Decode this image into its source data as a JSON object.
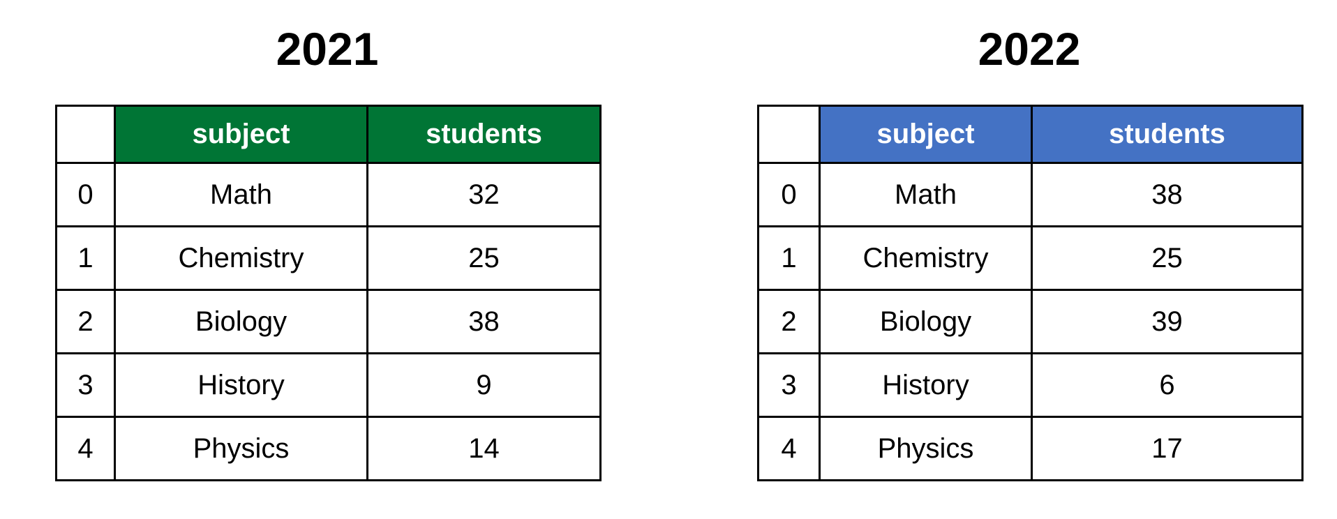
{
  "chart_data": [
    {
      "type": "table",
      "title": "2021",
      "header_color": "#007535",
      "columns": [
        "",
        "subject",
        "students"
      ],
      "rows": [
        {
          "index": "0",
          "subject": "Math",
          "students": 32
        },
        {
          "index": "1",
          "subject": "Chemistry",
          "students": 25
        },
        {
          "index": "2",
          "subject": "Biology",
          "students": 38
        },
        {
          "index": "3",
          "subject": "History",
          "students": 9
        },
        {
          "index": "4",
          "subject": "Physics",
          "students": 14
        }
      ]
    },
    {
      "type": "table",
      "title": "2022",
      "header_color": "#4472C4",
      "columns": [
        "",
        "subject",
        "students"
      ],
      "rows": [
        {
          "index": "0",
          "subject": "Math",
          "students": 38
        },
        {
          "index": "1",
          "subject": "Chemistry",
          "students": 25
        },
        {
          "index": "2",
          "subject": "Biology",
          "students": 39
        },
        {
          "index": "3",
          "subject": "History",
          "students": 6
        },
        {
          "index": "4",
          "subject": "Physics",
          "students": 17
        }
      ]
    }
  ]
}
